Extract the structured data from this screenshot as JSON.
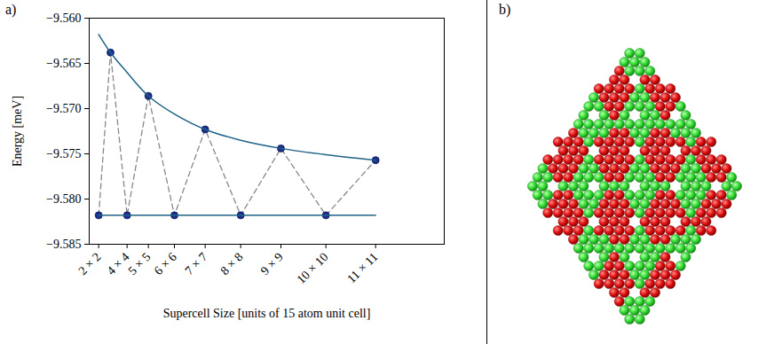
{
  "chart_data": {
    "type": "line",
    "panel_label": "a)",
    "xlabel": "Supercell Size [units of 15 atom unit cell]",
    "ylabel": "Energy [meV]",
    "xlim": [
      0,
      150
    ],
    "xticks": [
      {
        "value": 4,
        "label": "2 × 2"
      },
      {
        "value": 16,
        "label": "4 × 4"
      },
      {
        "value": 25,
        "label": "5 × 5"
      },
      {
        "value": 36,
        "label": "6 × 6"
      },
      {
        "value": 49,
        "label": "7 × 7"
      },
      {
        "value": 64,
        "label": "8 × 8"
      },
      {
        "value": 81,
        "label": "9 × 9"
      },
      {
        "value": 100,
        "label": "10 × 10"
      },
      {
        "value": 121,
        "label": "11 × 11"
      }
    ],
    "ylim": [
      -9.585,
      -9.56
    ],
    "yticks": [
      {
        "value": -9.585,
        "label": "−9.585"
      },
      {
        "value": -9.58,
        "label": "−9.580"
      },
      {
        "value": -9.575,
        "label": "−9.575"
      },
      {
        "value": -9.57,
        "label": "−9.570"
      },
      {
        "value": -9.565,
        "label": "−9.565"
      },
      {
        "value": -9.56,
        "label": "−9.560"
      }
    ],
    "grid": false,
    "series": [
      {
        "type": "line",
        "x": [
          4,
          9,
          16,
          25,
          36,
          49,
          64,
          81,
          100,
          121
        ],
        "values": [
          -9.5818,
          -9.5638,
          -9.5818,
          -9.5686,
          -9.5818,
          -9.5723,
          -9.5818,
          -9.5744,
          -9.5818,
          -9.5757
        ],
        "color": "#888888",
        "line_style": "dashed"
      },
      {
        "type": "scatter",
        "x": [
          4,
          9,
          16,
          25,
          36,
          49,
          64,
          81,
          100,
          121
        ],
        "values": [
          -9.5818,
          -9.5638,
          -9.5818,
          -9.5686,
          -9.5818,
          -9.5723,
          -9.5818,
          -9.5744,
          -9.5818,
          -9.5757
        ],
        "color": "#1c2f8f",
        "marker": "circle"
      },
      {
        "type": "line",
        "x": [
          4,
          9,
          16,
          25,
          36,
          49,
          64,
          81,
          100,
          121
        ],
        "values": [
          -9.5618,
          -9.5638,
          -9.566,
          -9.5686,
          -9.5706,
          -9.5723,
          -9.5735,
          -9.5744,
          -9.5751,
          -9.5757
        ],
        "color": "#1f6388",
        "line_style": "solid"
      },
      {
        "type": "line",
        "x": [
          4,
          121
        ],
        "values": [
          -9.5818,
          -9.5818
        ],
        "color": "#1f6388",
        "line_style": "solid"
      }
    ]
  },
  "image_panel": {
    "label": "b)"
  }
}
